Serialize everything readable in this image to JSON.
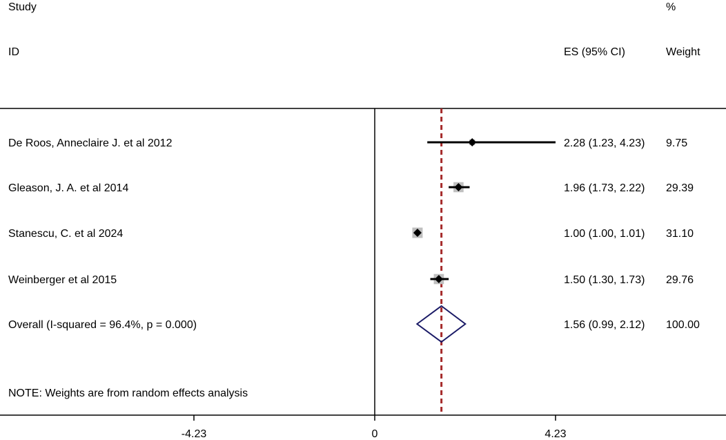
{
  "chart_data": {
    "type": "forest",
    "headers": {
      "study_line1": "Study",
      "study_line2": "ID",
      "es": "ES (95% CI)",
      "weight_line1": "%",
      "weight_line2": "Weight"
    },
    "studies": [
      {
        "label": "De Roos, Anneclaire J. et al 2012",
        "es": 2.28,
        "lower": 1.23,
        "upper": 4.23,
        "es_text": "2.28 (1.23, 4.23)",
        "weight": 9.75,
        "weight_text": "9.75"
      },
      {
        "label": "Gleason, J. A. et al 2014",
        "es": 1.96,
        "lower": 1.73,
        "upper": 2.22,
        "es_text": "1.96 (1.73, 2.22)",
        "weight": 29.39,
        "weight_text": "29.39"
      },
      {
        "label": "Stanescu, C. et al 2024",
        "es": 1.0,
        "lower": 1.0,
        "upper": 1.01,
        "es_text": "1.00 (1.00, 1.01)",
        "weight": 31.1,
        "weight_text": "31.10"
      },
      {
        "label": "Weinberger et al 2015",
        "es": 1.5,
        "lower": 1.3,
        "upper": 1.73,
        "es_text": "1.50 (1.30, 1.73)",
        "weight": 29.76,
        "weight_text": "29.76"
      }
    ],
    "overall": {
      "label": "Overall  (I-squared = 96.4%, p = 0.000)",
      "es": 1.56,
      "lower": 0.99,
      "upper": 2.12,
      "es_text": "1.56 (0.99, 2.12)",
      "weight_text": "100.00"
    },
    "note": "NOTE: Weights are from random effects analysis",
    "x_ticks": [
      -4.23,
      0,
      4.23
    ],
    "x_tick_labels": [
      "-4.23",
      "0",
      "4.23"
    ],
    "xlim": [
      -8.8,
      8.8
    ],
    "null_line": 0,
    "colors": {
      "marks": "#000000",
      "weight_box": "#bfbfbf",
      "overall_diamond": "#1a1a66",
      "overall_line": "#a52a2a"
    }
  }
}
